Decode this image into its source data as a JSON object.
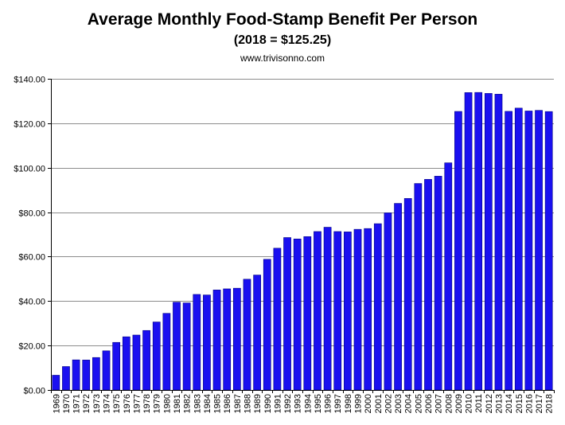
{
  "header": {
    "title": "Average Monthly Food-Stamp Benefit Per Person",
    "subtitle": "(2018 = $125.25)",
    "source": "www.trivisonno.com"
  },
  "colors": {
    "bar": "#1a10f0",
    "bar_outline": "#000080",
    "grid": "#8c8c8c",
    "axis": "#000000",
    "background": "#ffffff"
  },
  "chart_data": {
    "type": "bar",
    "title": "Average Monthly Food-Stamp Benefit Per Person",
    "subtitle": "(2018 = $125.25)",
    "xlabel": "",
    "ylabel": "",
    "ylim": [
      0,
      140
    ],
    "y_ticks": [
      0,
      20,
      40,
      60,
      80,
      100,
      120,
      140
    ],
    "y_tick_labels": [
      "$0.00",
      "$20.00",
      "$40.00",
      "$60.00",
      "$80.00",
      "$100.00",
      "$120.00",
      "$140.00"
    ],
    "grid": true,
    "legend": "none",
    "categories": [
      "1969",
      "1970",
      "1971",
      "1972",
      "1973",
      "1974",
      "1975",
      "1976",
      "1977",
      "1978",
      "1979",
      "1980",
      "1981",
      "1982",
      "1983",
      "1984",
      "1985",
      "1986",
      "1987",
      "1988",
      "1989",
      "1990",
      "1991",
      "1992",
      "1993",
      "1994",
      "1995",
      "1996",
      "1997",
      "1998",
      "1999",
      "2000",
      "2001",
      "2002",
      "2003",
      "2004",
      "2005",
      "2006",
      "2007",
      "2008",
      "2009",
      "2010",
      "2011",
      "2012",
      "2013",
      "2014",
      "2015",
      "2016",
      "2017",
      "2018"
    ],
    "values": [
      6.63,
      10.55,
      13.55,
      13.48,
      14.6,
      17.61,
      21.4,
      23.93,
      24.71,
      26.77,
      30.59,
      34.47,
      39.49,
      39.17,
      42.98,
      42.74,
      44.99,
      45.49,
      45.78,
      49.83,
      51.71,
      58.78,
      63.78,
      68.57,
      67.95,
      69.0,
      71.27,
      73.21,
      71.27,
      71.12,
      72.27,
      72.62,
      74.81,
      79.67,
      83.94,
      86.16,
      92.89,
      94.75,
      96.18,
      102.19,
      125.31,
      133.79,
      133.85,
      133.41,
      133.07,
      125.35,
      126.81,
      125.51,
      125.79,
      125.25
    ]
  }
}
